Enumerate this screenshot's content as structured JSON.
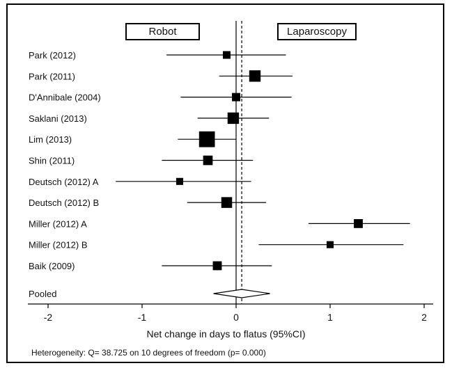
{
  "chart_data": {
    "type": "forest",
    "xlabel": "Net change in days to flatus (95%CI)",
    "xlim": [
      -2,
      2
    ],
    "xticks": [
      -2,
      -1,
      0,
      1,
      2
    ],
    "favours_left": "Robot",
    "favours_right": "Laparoscopy",
    "studies": [
      {
        "name": "Park (2012)",
        "estimate": -0.1,
        "ci": [
          -0.74,
          0.53
        ],
        "weight": 1.0
      },
      {
        "name": "Park (2011)",
        "estimate": 0.2,
        "ci": [
          -0.18,
          0.6
        ],
        "weight": 1.6
      },
      {
        "name": "D'Annibale (2004)",
        "estimate": 0.0,
        "ci": [
          -0.59,
          0.59
        ],
        "weight": 1.1
      },
      {
        "name": "Saklani (2013)",
        "estimate": -0.03,
        "ci": [
          -0.41,
          0.35
        ],
        "weight": 1.6
      },
      {
        "name": "Lim (2013)",
        "estimate": -0.31,
        "ci": [
          -0.62,
          0.0
        ],
        "weight": 2.3
      },
      {
        "name": "Shin (2011)",
        "estimate": -0.3,
        "ci": [
          -0.79,
          0.18
        ],
        "weight": 1.3
      },
      {
        "name": "Deutsch (2012) A",
        "estimate": -0.6,
        "ci": [
          -1.28,
          0.16
        ],
        "weight": 0.9
      },
      {
        "name": "Deutsch (2012) B",
        "estimate": -0.1,
        "ci": [
          -0.52,
          0.32
        ],
        "weight": 1.5
      },
      {
        "name": "Miller (2012) A",
        "estimate": 1.3,
        "ci": [
          0.77,
          1.85
        ],
        "weight": 1.2
      },
      {
        "name": "Miller (2012) B",
        "estimate": 1.0,
        "ci": [
          0.24,
          1.78
        ],
        "weight": 0.9
      },
      {
        "name": "Baik (2009)",
        "estimate": -0.2,
        "ci": [
          -0.79,
          0.38
        ],
        "weight": 1.2
      }
    ],
    "pooled": {
      "name": "Pooled",
      "estimate": 0.06,
      "ci": [
        -0.24,
        0.36
      ]
    },
    "heterogeneity": "Heterogeneity: Q= 38.725 on 10 degrees of freedom (p= 0.000)"
  }
}
